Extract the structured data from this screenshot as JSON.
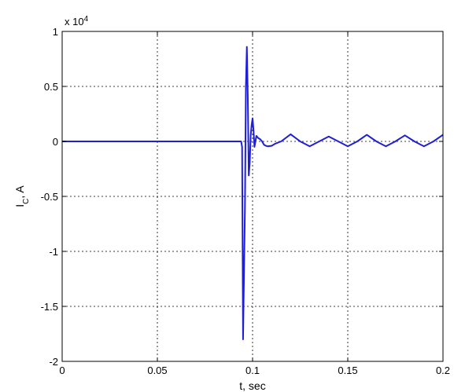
{
  "chart_data": {
    "type": "line",
    "xlabel": "t, sec",
    "ylabel": "I",
    "ylabel_subscript": "C",
    "ylabel_suffix": ", A",
    "y_multiplier_base": "x 10",
    "y_multiplier_exp": "4",
    "xlim": [
      0,
      0.2
    ],
    "ylim": [
      -2,
      1
    ],
    "x_ticks": [
      0,
      0.05,
      0.1,
      0.15,
      0.2
    ],
    "x_tick_labels": [
      "0",
      "0.05",
      "0.1",
      "0.15",
      "0.2"
    ],
    "y_ticks": [
      -2,
      -1.5,
      -1,
      -0.5,
      0,
      0.5,
      1
    ],
    "y_tick_labels": [
      "-2",
      "-1.5",
      "-1",
      "-0.5",
      "0",
      "0.5",
      "1"
    ],
    "grid": true,
    "line_color": "#1f1fd6",
    "series": [
      {
        "x": [
          0,
          0.05,
          0.094,
          0.0945,
          0.095,
          0.0955,
          0.096,
          0.0965,
          0.097,
          0.0975,
          0.098,
          0.0985,
          0.099,
          0.0995,
          0.1,
          0.1005,
          0.101,
          0.102,
          0.103,
          0.104,
          0.105,
          0.106,
          0.107,
          0.108,
          0.11,
          0.112,
          0.115,
          0.12,
          0.125,
          0.13,
          0.135,
          0.14,
          0.145,
          0.15,
          0.155,
          0.16,
          0.165,
          0.17,
          0.175,
          0.18,
          0.185,
          0.19,
          0.195,
          0.2
        ],
        "y": [
          0,
          0,
          0,
          -0.05,
          -1.8,
          -1.2,
          -0.6,
          0.5,
          0.86,
          0.4,
          -0.31,
          -0.2,
          0.05,
          0.15,
          0.21,
          0.1,
          -0.05,
          0.05,
          0.03,
          0.02,
          0.0,
          -0.03,
          -0.04,
          -0.045,
          -0.04,
          -0.02,
          0.0,
          0.065,
          0.0,
          -0.045,
          0.0,
          0.045,
          0.0,
          -0.045,
          0.0,
          0.06,
          0.0,
          -0.045,
          0.0,
          0.055,
          0.0,
          -0.045,
          0.0,
          0.06
        ]
      }
    ]
  }
}
